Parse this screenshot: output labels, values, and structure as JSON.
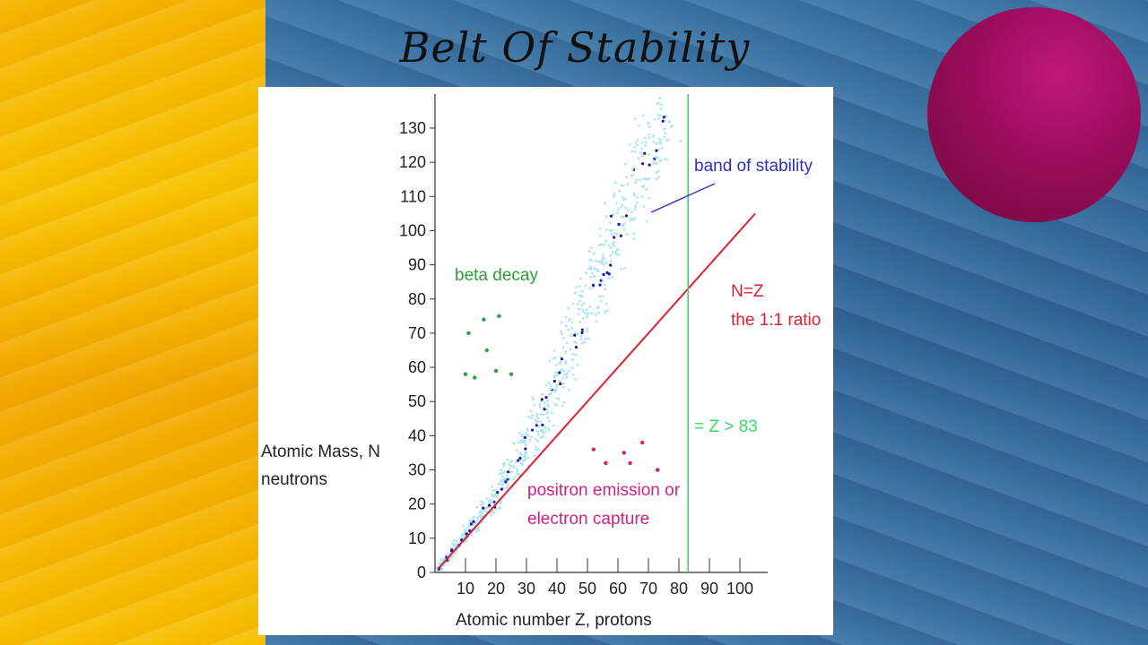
{
  "slide": {
    "title": "Belt Of Stability",
    "colors": {
      "left_background": "#f5b400",
      "right_background": "#3a6f9e",
      "sphere": "#9a0c5c"
    }
  },
  "chart_data": {
    "type": "scatter",
    "ylabel_line1": "Atomic Mass, N",
    "ylabel_line2": "neutrons",
    "xlabel": "Atomic number Z, protons",
    "xlim": [
      0,
      110
    ],
    "ylim": [
      0,
      140
    ],
    "x_ticks": [
      10,
      20,
      30,
      40,
      50,
      60,
      70,
      80,
      90,
      100
    ],
    "y_ticks": [
      0,
      10,
      20,
      30,
      40,
      50,
      60,
      70,
      80,
      90,
      100,
      110,
      120,
      130
    ],
    "annotations": {
      "band": "band of stability",
      "beta": "beta decay",
      "nz_line1": "N=Z",
      "nz_line2": "the 1:1 ratio",
      "zlimit": "= Z > 83",
      "positron_line1": "positron emission or",
      "positron_line2": "electron capture"
    },
    "colors": {
      "band": "#aee6f0",
      "band_dark": "#1a1ab0",
      "line": "#e0202e",
      "vline": "#33dd66",
      "beta": "#2e9e3e",
      "positron": "#d02080"
    },
    "nz_line": {
      "x": [
        1,
        105
      ],
      "y": [
        1,
        105
      ]
    },
    "z_limit_x": 83,
    "band_center": [
      [
        1,
        1
      ],
      [
        5,
        5
      ],
      [
        10,
        11
      ],
      [
        15,
        17
      ],
      [
        20,
        22
      ],
      [
        25,
        30
      ],
      [
        30,
        37
      ],
      [
        35,
        46
      ],
      [
        40,
        55
      ],
      [
        45,
        67
      ],
      [
        50,
        78
      ],
      [
        55,
        88
      ],
      [
        60,
        100
      ],
      [
        65,
        112
      ],
      [
        70,
        125
      ],
      [
        75,
        133
      ]
    ],
    "beta_decay_points": [
      [
        10,
        58
      ],
      [
        11,
        70
      ],
      [
        13,
        57
      ],
      [
        16,
        74
      ],
      [
        17,
        65
      ],
      [
        20,
        59
      ],
      [
        21,
        75
      ],
      [
        25,
        58
      ]
    ],
    "positron_points": [
      [
        52,
        36
      ],
      [
        56,
        32
      ],
      [
        62,
        35
      ],
      [
        64,
        32
      ],
      [
        68,
        38
      ],
      [
        73,
        30
      ]
    ]
  }
}
